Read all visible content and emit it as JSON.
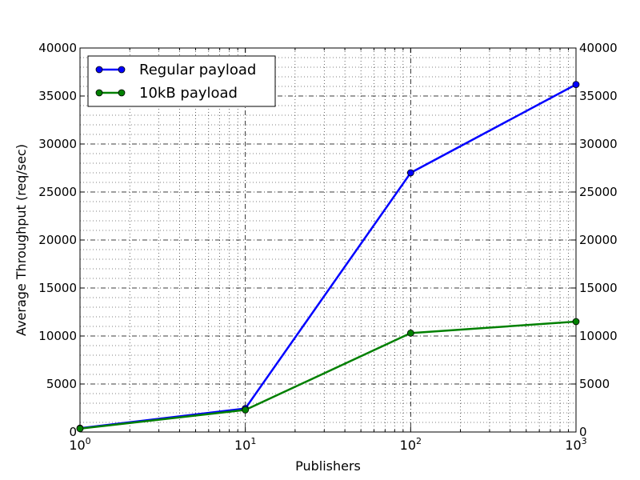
{
  "chart_data": {
    "type": "line",
    "title": "",
    "xlabel": "Publishers",
    "ylabel": "Average Throughput (req/sec)",
    "xscale": "log",
    "xlim": [
      1,
      1000
    ],
    "ylim": [
      0,
      40000
    ],
    "x": [
      1,
      10,
      100,
      1000
    ],
    "x_tick_labels": [
      {
        "value": 1,
        "base": "10",
        "exp": "0"
      },
      {
        "value": 10,
        "base": "10",
        "exp": "1"
      },
      {
        "value": 100,
        "base": "10",
        "exp": "2"
      },
      {
        "value": 1000,
        "base": "10",
        "exp": "3"
      }
    ],
    "y_ticks": [
      0,
      5000,
      10000,
      15000,
      20000,
      25000,
      30000,
      35000,
      40000
    ],
    "grid": true,
    "legend_position": "top-left",
    "series": [
      {
        "name": "Regular payload",
        "color": "#0000ff",
        "values": [
          400,
          2450,
          27000,
          36200
        ]
      },
      {
        "name": "10kB payload",
        "color": "#008000",
        "values": [
          350,
          2300,
          10300,
          11500
        ]
      }
    ]
  }
}
